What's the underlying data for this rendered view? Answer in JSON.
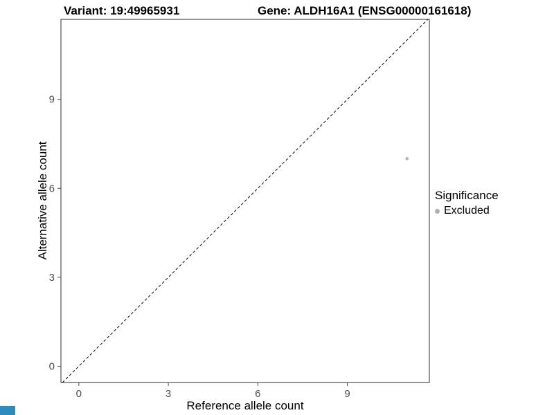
{
  "figure": {
    "title_left": "Variant: 19:49965931",
    "title_right": "Gene: ALDH16A1 (ENSG00000161618)"
  },
  "chart_data": {
    "type": "scatter",
    "title": "Variant: 19:49965931 — Gene: ALDH16A1 (ENSG00000161618)",
    "xlabel": "Reference allele count",
    "ylabel": "Alternative allele count",
    "xlim": [
      -0.6,
      11.75
    ],
    "ylim": [
      -0.55,
      11.7
    ],
    "xticks": [
      0,
      3,
      6,
      9
    ],
    "yticks": [
      0,
      3,
      6,
      9
    ],
    "grid": false,
    "points": [
      {
        "x": 11,
        "y": 7,
        "series": "Excluded"
      }
    ],
    "reference_line": {
      "type": "identity",
      "slope": 1,
      "intercept": 0,
      "style": "dashed"
    },
    "legend": {
      "position": "right",
      "title": "Significance",
      "items": [
        {
          "label": "Excluded",
          "color": "#b0b0b0"
        }
      ]
    },
    "colors": {
      "point": "#b0b0b0",
      "line": "#000000",
      "panel_border": "#2b2b2b",
      "tick_text": "#4d4d4d",
      "corner_mark": "#2b8cbe"
    }
  }
}
